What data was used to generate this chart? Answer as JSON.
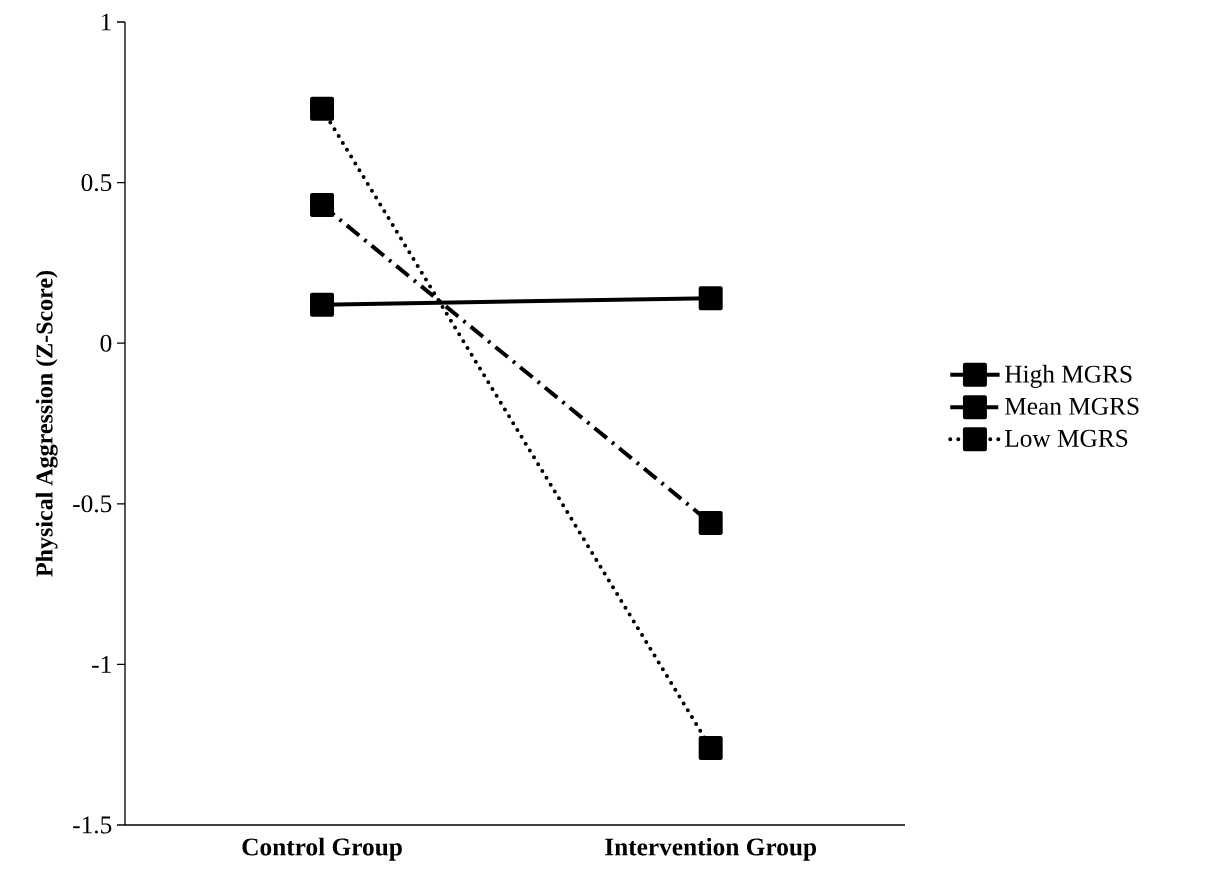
{
  "chart_data": {
    "type": "line",
    "ylabel": "Physical Aggression (Z-Score)",
    "categories": [
      "Control Group",
      "Intervention Group"
    ],
    "series": [
      {
        "name": "High MGRS",
        "color": "#000000",
        "values": [
          0.12,
          0.14
        ],
        "line_style": "solid"
      },
      {
        "name": "Mean MGRS",
        "color": "#000000",
        "values": [
          0.43,
          -0.56
        ],
        "line_style": "dashed"
      },
      {
        "name": "Low MGRS",
        "color": "#000000",
        "values": [
          0.73,
          -1.26
        ],
        "line_style": "dotted"
      }
    ],
    "ylim": [
      -1.5,
      1
    ],
    "yticks": [
      -1.5,
      -1,
      -0.5,
      0,
      0.5,
      1
    ],
    "marker": "square",
    "legend": "right",
    "grid": false
  }
}
